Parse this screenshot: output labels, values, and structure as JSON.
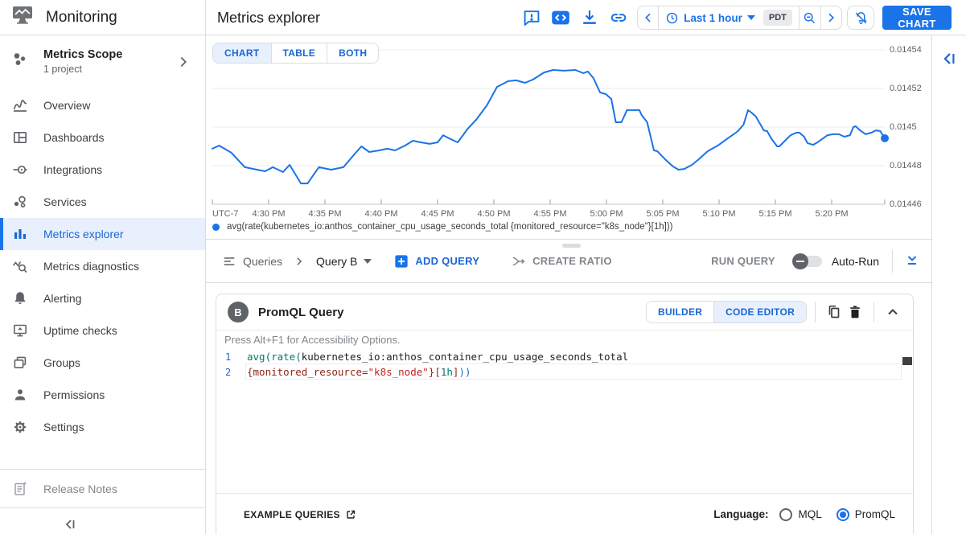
{
  "app": {
    "product": "Monitoring"
  },
  "sidebar": {
    "scope_title": "Metrics Scope",
    "scope_subtitle": "1 project",
    "items": [
      {
        "label": "Overview",
        "icon": "overview-icon"
      },
      {
        "label": "Dashboards",
        "icon": "dashboards-icon"
      },
      {
        "label": "Integrations",
        "icon": "integrations-icon"
      },
      {
        "label": "Services",
        "icon": "services-icon"
      },
      {
        "label": "Metrics explorer",
        "icon": "metrics-explorer-icon",
        "active": true
      },
      {
        "label": "Metrics diagnostics",
        "icon": "metrics-diagnostics-icon"
      },
      {
        "label": "Alerting",
        "icon": "alerting-icon"
      },
      {
        "label": "Uptime checks",
        "icon": "uptime-checks-icon"
      },
      {
        "label": "Groups",
        "icon": "groups-icon"
      },
      {
        "label": "Permissions",
        "icon": "permissions-icon"
      },
      {
        "label": "Settings",
        "icon": "settings-icon"
      }
    ],
    "release_notes_label": "Release Notes"
  },
  "header": {
    "title": "Metrics explorer",
    "time_range_label": "Last 1 hour",
    "timezone_badge": "PDT",
    "save_button_label": "SAVE CHART"
  },
  "chart_tabs": {
    "labels": [
      "CHART",
      "TABLE",
      "BOTH"
    ],
    "active": "CHART"
  },
  "chart_data": {
    "type": "line",
    "title": "",
    "timezone": "UTC-7",
    "x_tick_labels": [
      "4:30 PM",
      "4:35 PM",
      "4:40 PM",
      "4:45 PM",
      "4:50 PM",
      "4:55 PM",
      "5:00 PM",
      "5:05 PM",
      "5:10 PM",
      "5:15 PM",
      "5:20 PM"
    ],
    "y_tick_labels": [
      "0.01454",
      "0.01452",
      "0.0145",
      "0.01448",
      "0.01446"
    ],
    "ylim": [
      0.01446,
      0.01454
    ],
    "x_range_minutes": [
      0,
      60
    ],
    "x_axis_note": "minutes after 4:25 PM",
    "grid": true,
    "legend_position": "bottom",
    "series": [
      {
        "name": "avg(rate(kubernetes_io:anthos_container_cpu_usage_seconds_total {monitored_resource=\"k8s_node\"}[1h]))",
        "color": "#1a73e8",
        "end_dot": true,
        "x_minutes": [
          0,
          0.6,
          1.7,
          2.9,
          4.7,
          5.4,
          6.3,
          6.9,
          7.9,
          8.5,
          9.5,
          10.6,
          11.7,
          12.6,
          13.3,
          14,
          14.9,
          15.6,
          16.3,
          17.2,
          17.9,
          18.6,
          19.4,
          20.1,
          20.6,
          21.1,
          21.9,
          22.8,
          23.6,
          24.5,
          25.4,
          26.4,
          27.1,
          27.9,
          28.6,
          29.6,
          30.4,
          31.4,
          32.4,
          33.1,
          33.5,
          34,
          34.6,
          35.1,
          35.6,
          36,
          36.5,
          37,
          38.1,
          38.3,
          38.8,
          39.4,
          39.7,
          40.4,
          41.1,
          41.6,
          42.1,
          42.8,
          43.4,
          43.8,
          44.2,
          44.6,
          45.2,
          45.9,
          46.4,
          46.9,
          47.4,
          47.8,
          48.1,
          48.5,
          49,
          49.2,
          49.5,
          49.9,
          50.4,
          50.6,
          51.1,
          51.6,
          52.1,
          52.4,
          52.8,
          53.1,
          53.6,
          54,
          54.5,
          54.9,
          55.4,
          55.9,
          56.4,
          56.9,
          57.2,
          57.4,
          57.8,
          58.3,
          58.8,
          59.2,
          59.6,
          60
        ],
        "values": [
          0.0144888,
          0.0144904,
          0.0144867,
          0.0144792,
          0.0144771,
          0.0144792,
          0.0144767,
          0.0144804,
          0.0144708,
          0.0144708,
          0.0144792,
          0.0144779,
          0.0144792,
          0.0144854,
          0.01449,
          0.0144871,
          0.0144879,
          0.0144888,
          0.0144879,
          0.0144904,
          0.0144929,
          0.0144921,
          0.0144913,
          0.0144921,
          0.0144958,
          0.0144942,
          0.0144921,
          0.0144992,
          0.0145042,
          0.0145113,
          0.0145208,
          0.0145238,
          0.0145242,
          0.0145229,
          0.0145246,
          0.0145283,
          0.0145296,
          0.0145292,
          0.0145296,
          0.0145279,
          0.0145288,
          0.0145254,
          0.0145179,
          0.0145171,
          0.0145146,
          0.0145025,
          0.0145025,
          0.0145088,
          0.0145088,
          0.0145063,
          0.0145025,
          0.0144879,
          0.0144875,
          0.0144833,
          0.0144796,
          0.0144779,
          0.0144783,
          0.0144804,
          0.0144833,
          0.0144854,
          0.0144875,
          0.0144888,
          0.0144908,
          0.0144938,
          0.0144958,
          0.0144979,
          0.0145013,
          0.0145088,
          0.0145075,
          0.0145054,
          0.0145004,
          0.0144983,
          0.0144979,
          0.0144938,
          0.01449,
          0.01449,
          0.0144929,
          0.0144958,
          0.0144971,
          0.0144971,
          0.014495,
          0.0144917,
          0.0144908,
          0.0144921,
          0.0144942,
          0.0144958,
          0.0144963,
          0.0144963,
          0.014495,
          0.0144958,
          0.0145,
          0.0145004,
          0.0144983,
          0.0144963,
          0.0144971,
          0.0144983,
          0.0144979,
          0.0144942
        ]
      }
    ]
  },
  "query_toolbar": {
    "queries_label": "Queries",
    "selected_query": "Query B",
    "add_query_label": "ADD QUERY",
    "create_ratio_label": "CREATE RATIO",
    "run_query_label": "RUN QUERY",
    "auto_run_label": "Auto-Run",
    "auto_run_enabled": false
  },
  "promql_card": {
    "badge": "B",
    "title": "PromQL Query",
    "mode_tabs": [
      "BUILDER",
      "CODE EDITOR"
    ],
    "active_mode": "CODE EDITOR",
    "accessibility_hint": "Press Alt+F1 for Accessibility Options.",
    "code_lines": [
      {
        "number": "1",
        "tokens": [
          {
            "t": "avg(",
            "c": "fn"
          },
          {
            "t": "rate(",
            "c": "fn"
          },
          {
            "t": "kubernetes_io:anthos_container_cpu_usage_seconds_total",
            "c": "plain"
          }
        ]
      },
      {
        "number": "2",
        "tokens": [
          {
            "t": "{monitored_resource=",
            "c": "attr"
          },
          {
            "t": "\"k8s_node\"",
            "c": "str"
          },
          {
            "t": "}",
            "c": "attr"
          },
          {
            "t": "[",
            "c": "attr"
          },
          {
            "t": "1h",
            "c": "fn"
          },
          {
            "t": "]",
            "c": "attr"
          },
          {
            "t": "))",
            "c": "paren"
          }
        ]
      }
    ],
    "example_queries_label": "EXAMPLE QUERIES",
    "language_label": "Language:",
    "language_options": [
      "MQL",
      "PromQL"
    ],
    "selected_language": "PromQL"
  },
  "colors": {
    "accent": "#1a73e8",
    "accent_text": "#1967d2",
    "selected_bg": "#e8f0fe",
    "badge_bg": "#5f6368"
  }
}
